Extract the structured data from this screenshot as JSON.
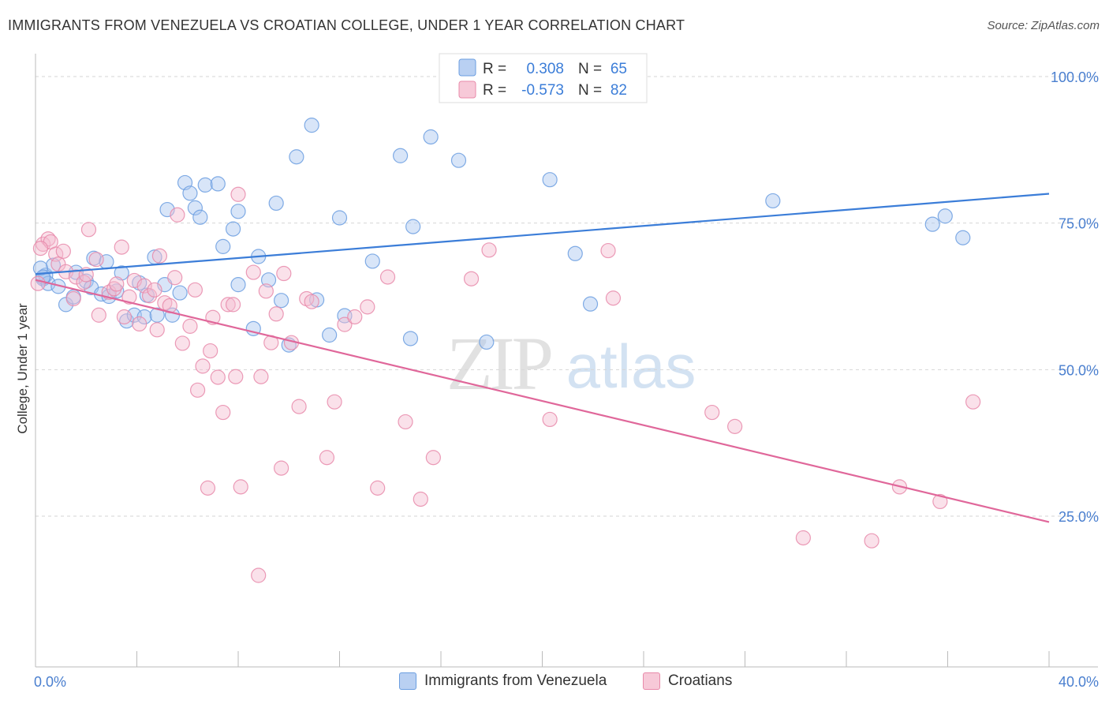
{
  "title": "IMMIGRANTS FROM VENEZUELA VS CROATIAN COLLEGE, UNDER 1 YEAR CORRELATION CHART",
  "source": "Source: ZipAtlas.com",
  "watermark": {
    "zip": "ZIP",
    "atlas": "atlas"
  },
  "chart_data": {
    "type": "scatter",
    "ylabel": "College, Under 1 year",
    "xlabel": "",
    "x_tick_labels": [
      "0.0%",
      "40.0%"
    ],
    "y_tick_labels": [
      "100.0%",
      "75.0%",
      "50.0%",
      "25.0%"
    ],
    "xlim": [
      0,
      40
    ],
    "ylim": [
      0,
      105
    ],
    "grid": "horizontal dashed",
    "legend_placement": "top-center",
    "legend": [
      {
        "r_label": "R =",
        "r_value": "0.308",
        "n_label": "N =",
        "n_value": "65"
      },
      {
        "r_label": "R =",
        "r_value": "-0.573",
        "n_label": "N =",
        "n_value": "82"
      }
    ],
    "series": [
      {
        "name": "Immigrants from Venezuela",
        "color": "#6b9ee0",
        "fill": "#a9c6ef",
        "line_color": "#3b7dd8",
        "trend": {
          "x": [
            0,
            40
          ],
          "y": [
            66.3,
            80.0
          ]
        },
        "points": [
          [
            0.3,
            65.5
          ],
          [
            0.4,
            66.1
          ],
          [
            0.5,
            64.7
          ],
          [
            0.7,
            67.8
          ],
          [
            0.9,
            64.2
          ],
          [
            1.2,
            61.1
          ],
          [
            1.5,
            62.4
          ],
          [
            1.6,
            66.6
          ],
          [
            2.0,
            65.1
          ],
          [
            2.2,
            64.0
          ],
          [
            2.3,
            69.0
          ],
          [
            2.6,
            62.9
          ],
          [
            2.8,
            68.4
          ],
          [
            2.9,
            62.5
          ],
          [
            3.2,
            63.4
          ],
          [
            3.4,
            66.5
          ],
          [
            3.6,
            58.3
          ],
          [
            3.9,
            59.3
          ],
          [
            4.1,
            64.8
          ],
          [
            4.3,
            59.0
          ],
          [
            4.4,
            62.7
          ],
          [
            4.7,
            69.2
          ],
          [
            4.8,
            59.3
          ],
          [
            5.1,
            64.5
          ],
          [
            5.2,
            77.3
          ],
          [
            5.4,
            59.3
          ],
          [
            5.7,
            63.1
          ],
          [
            5.9,
            81.9
          ],
          [
            6.1,
            80.1
          ],
          [
            6.3,
            77.6
          ],
          [
            6.5,
            76.0
          ],
          [
            6.7,
            81.5
          ],
          [
            7.2,
            81.7
          ],
          [
            7.4,
            71.0
          ],
          [
            7.8,
            74.0
          ],
          [
            8.0,
            77.0
          ],
          [
            8.0,
            64.5
          ],
          [
            8.6,
            57.0
          ],
          [
            8.8,
            69.3
          ],
          [
            9.2,
            65.3
          ],
          [
            9.5,
            78.4
          ],
          [
            9.7,
            61.8
          ],
          [
            10.0,
            54.2
          ],
          [
            10.3,
            86.3
          ],
          [
            10.9,
            91.7
          ],
          [
            11.1,
            61.9
          ],
          [
            11.6,
            55.9
          ],
          [
            12.0,
            75.9
          ],
          [
            12.2,
            59.2
          ],
          [
            13.3,
            68.5
          ],
          [
            14.4,
            86.5
          ],
          [
            14.8,
            55.3
          ],
          [
            14.9,
            74.4
          ],
          [
            15.6,
            89.7
          ],
          [
            16.7,
            85.7
          ],
          [
            17.8,
            54.7
          ],
          [
            20.3,
            82.4
          ],
          [
            21.3,
            69.8
          ],
          [
            21.9,
            61.2
          ],
          [
            29.1,
            78.8
          ],
          [
            35.4,
            74.8
          ],
          [
            35.9,
            76.2
          ],
          [
            36.6,
            72.5
          ],
          [
            0.2,
            67.3
          ],
          [
            0.3,
            65.8
          ]
        ]
      },
      {
        "name": "Croatians",
        "color": "#e88aaa",
        "fill": "#f5bcd0",
        "line_color": "#e0679a",
        "trend": {
          "x": [
            0,
            40
          ],
          "y": [
            65.3,
            24.0
          ]
        },
        "points": [
          [
            0.1,
            64.7
          ],
          [
            0.3,
            71.4
          ],
          [
            0.5,
            72.3
          ],
          [
            0.6,
            71.8
          ],
          [
            0.8,
            69.7
          ],
          [
            0.9,
            68.0
          ],
          [
            1.1,
            70.2
          ],
          [
            1.2,
            66.7
          ],
          [
            1.5,
            62.1
          ],
          [
            1.6,
            65.8
          ],
          [
            1.9,
            64.9
          ],
          [
            2.0,
            66.2
          ],
          [
            2.1,
            73.9
          ],
          [
            2.4,
            68.8
          ],
          [
            2.5,
            59.3
          ],
          [
            2.9,
            63.2
          ],
          [
            3.1,
            63.8
          ],
          [
            3.2,
            64.6
          ],
          [
            3.4,
            70.9
          ],
          [
            3.5,
            59.0
          ],
          [
            3.7,
            62.4
          ],
          [
            3.9,
            65.2
          ],
          [
            4.1,
            57.8
          ],
          [
            4.3,
            64.3
          ],
          [
            4.5,
            62.6
          ],
          [
            4.7,
            63.6
          ],
          [
            4.8,
            56.8
          ],
          [
            4.9,
            69.4
          ],
          [
            5.1,
            61.4
          ],
          [
            5.3,
            60.9
          ],
          [
            5.5,
            65.7
          ],
          [
            5.6,
            76.4
          ],
          [
            5.8,
            54.5
          ],
          [
            6.1,
            57.4
          ],
          [
            6.3,
            63.6
          ],
          [
            6.4,
            46.5
          ],
          [
            6.6,
            50.6
          ],
          [
            6.8,
            29.8
          ],
          [
            6.9,
            53.2
          ],
          [
            7.0,
            58.9
          ],
          [
            7.2,
            48.7
          ],
          [
            7.4,
            42.7
          ],
          [
            7.6,
            61.1
          ],
          [
            7.8,
            61.1
          ],
          [
            7.9,
            48.8
          ],
          [
            8.0,
            79.9
          ],
          [
            8.1,
            30.0
          ],
          [
            8.6,
            66.6
          ],
          [
            8.8,
            14.9
          ],
          [
            8.9,
            48.8
          ],
          [
            9.1,
            63.4
          ],
          [
            9.3,
            54.6
          ],
          [
            9.5,
            59.5
          ],
          [
            9.7,
            33.2
          ],
          [
            9.8,
            66.4
          ],
          [
            10.1,
            54.6
          ],
          [
            10.4,
            43.7
          ],
          [
            10.7,
            62.1
          ],
          [
            10.9,
            61.6
          ],
          [
            11.5,
            35.0
          ],
          [
            11.8,
            44.5
          ],
          [
            12.2,
            57.7
          ],
          [
            12.6,
            59.0
          ],
          [
            13.1,
            60.7
          ],
          [
            13.5,
            29.8
          ],
          [
            13.9,
            65.8
          ],
          [
            14.6,
            41.1
          ],
          [
            15.2,
            27.9
          ],
          [
            15.7,
            35.0
          ],
          [
            17.2,
            65.5
          ],
          [
            17.9,
            70.4
          ],
          [
            20.3,
            41.5
          ],
          [
            22.6,
            70.3
          ],
          [
            22.8,
            62.2
          ],
          [
            26.7,
            42.7
          ],
          [
            27.6,
            40.3
          ],
          [
            30.3,
            21.3
          ],
          [
            33.0,
            20.8
          ],
          [
            34.1,
            30.0
          ],
          [
            35.7,
            27.5
          ],
          [
            37.0,
            44.5
          ],
          [
            0.2,
            70.7
          ]
        ]
      }
    ]
  }
}
